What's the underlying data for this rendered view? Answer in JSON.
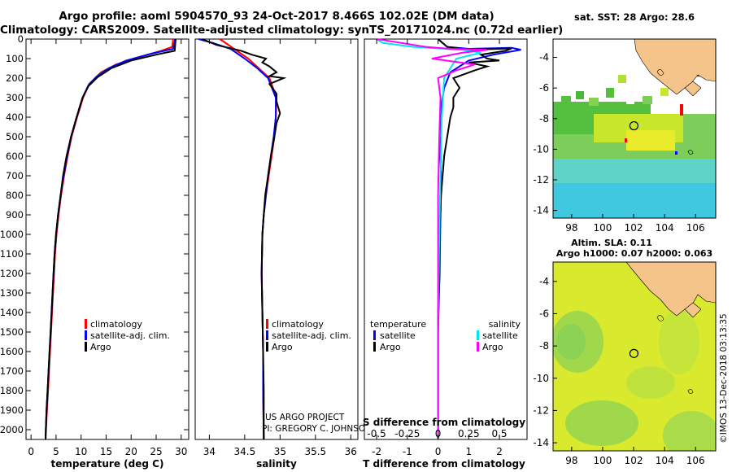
{
  "header": {
    "line1": "Argo profile: aoml 5904570_93 24-Oct-2017 8.466S 102.02E (DM data)",
    "line2": "Climatology: CARS2009. Satellite-adjusted climatology: synTS_20171024.nc (0.72d earlier)"
  },
  "colors": {
    "climatology": "#ff0000",
    "satellite": "#0000ff",
    "argo": "#000000",
    "salinity_satellite": "#00e5ee",
    "salinity_argo": "#ff00ff",
    "land": "#f5c48b"
  },
  "depth_axis": {
    "range": [
      0,
      2050
    ],
    "ticks": [
      0,
      100,
      200,
      300,
      400,
      500,
      600,
      700,
      800,
      900,
      1000,
      1100,
      1200,
      1300,
      1400,
      1500,
      1600,
      1700,
      1800,
      1900,
      2000
    ]
  },
  "chart_data": [
    {
      "type": "line",
      "name": "temperature",
      "xlabel": "temperature (deg C)",
      "xlim": [
        -1,
        31.5
      ],
      "xticks": [
        0,
        5,
        10,
        15,
        20,
        25,
        30
      ],
      "ylim": [
        0,
        2050
      ],
      "legend": {
        "position": "bottom-right",
        "items": [
          "climatology",
          "satellite-adj. clim.",
          "Argo"
        ]
      },
      "series": [
        {
          "name": "climatology",
          "color": "#ff0000",
          "points": [
            [
              28.4,
              0
            ],
            [
              28.2,
              40
            ],
            [
              26.0,
              60
            ],
            [
              22,
              90
            ],
            [
              17,
              130
            ],
            [
              14,
              170
            ],
            [
              11.6,
              230
            ],
            [
              10.4,
              300
            ],
            [
              9.2,
              400
            ],
            [
              8.1,
              500
            ],
            [
              7.3,
              600
            ],
            [
              6.6,
              700
            ],
            [
              6.0,
              800
            ],
            [
              5.5,
              900
            ],
            [
              5.1,
              1000
            ],
            [
              4.8,
              1100
            ],
            [
              4.6,
              1200
            ],
            [
              4.4,
              1300
            ],
            [
              4.2,
              1400
            ],
            [
              4.0,
              1500
            ],
            [
              3.8,
              1600
            ],
            [
              3.6,
              1700
            ],
            [
              3.4,
              1800
            ],
            [
              3.2,
              1900
            ],
            [
              3.0,
              2000
            ],
            [
              2.9,
              2050
            ]
          ]
        },
        {
          "name": "satellite-adj. clim.",
          "color": "#0000ff",
          "points": [
            [
              28.8,
              0
            ],
            [
              28.4,
              50
            ],
            [
              24,
              75
            ],
            [
              19,
              110
            ],
            [
              15.5,
              150
            ],
            [
              13,
              195
            ],
            [
              11.4,
              240
            ],
            [
              10.3,
              300
            ],
            [
              9.1,
              400
            ],
            [
              8.0,
              500
            ],
            [
              7.2,
              600
            ],
            [
              6.5,
              700
            ],
            [
              5.9,
              800
            ],
            [
              5.4,
              900
            ],
            [
              5.0,
              1000
            ],
            [
              4.7,
              1100
            ],
            [
              4.5,
              1200
            ],
            [
              4.3,
              1300
            ],
            [
              4.1,
              1400
            ],
            [
              3.9,
              1500
            ],
            [
              3.7,
              1600
            ],
            [
              3.5,
              1700
            ],
            [
              3.3,
              1800
            ],
            [
              3.1,
              1900
            ],
            [
              2.95,
              2000
            ],
            [
              2.9,
              2050
            ]
          ]
        },
        {
          "name": "Argo",
          "color": "#000000",
          "points": [
            [
              28.9,
              0
            ],
            [
              28.7,
              60
            ],
            [
              25,
              80
            ],
            [
              20,
              110
            ],
            [
              16,
              150
            ],
            [
              13.3,
              195
            ],
            [
              11.5,
              240
            ],
            [
              10.3,
              300
            ],
            [
              9.1,
              400
            ],
            [
              8.0,
              500
            ],
            [
              7.1,
              600
            ],
            [
              6.4,
              700
            ],
            [
              5.9,
              800
            ],
            [
              5.4,
              900
            ],
            [
              5.0,
              1000
            ],
            [
              4.7,
              1100
            ],
            [
              4.5,
              1200
            ],
            [
              4.3,
              1300
            ],
            [
              4.1,
              1400
            ],
            [
              3.9,
              1500
            ],
            [
              3.7,
              1600
            ],
            [
              3.5,
              1700
            ],
            [
              3.3,
              1800
            ],
            [
              3.1,
              1900
            ],
            [
              2.95,
              2000
            ],
            [
              2.9,
              2050
            ]
          ]
        }
      ]
    },
    {
      "type": "line",
      "name": "salinity",
      "xlabel": "salinity",
      "xlim": [
        33.8,
        36.1
      ],
      "xticks": [
        34,
        34.5,
        35,
        35.5,
        36
      ],
      "ylim": [
        0,
        2050
      ],
      "legend": {
        "position": "bottom-right",
        "items": [
          "climatology",
          "satellite-adj. clim.",
          "Argo"
        ]
      },
      "series": [
        {
          "name": "climatology",
          "color": "#ff0000",
          "points": [
            [
              34.15,
              0
            ],
            [
              34.35,
              50
            ],
            [
              34.55,
              100
            ],
            [
              34.7,
              150
            ],
            [
              34.85,
              200
            ],
            [
              34.95,
              300
            ],
            [
              34.94,
              400
            ],
            [
              34.92,
              500
            ],
            [
              34.88,
              600
            ],
            [
              34.84,
              700
            ],
            [
              34.8,
              800
            ],
            [
              34.77,
              900
            ],
            [
              34.75,
              1000
            ],
            [
              34.74,
              1200
            ],
            [
              34.75,
              1400
            ],
            [
              34.76,
              1600
            ],
            [
              34.76,
              1800
            ],
            [
              34.77,
              2050
            ]
          ]
        },
        {
          "name": "satellite-adj. clim.",
          "color": "#0000ff",
          "points": [
            [
              33.85,
              0
            ],
            [
              34.05,
              20
            ],
            [
              34.3,
              50
            ],
            [
              34.5,
              100
            ],
            [
              34.68,
              150
            ],
            [
              34.83,
              200
            ],
            [
              34.94,
              300
            ],
            [
              34.94,
              400
            ],
            [
              34.91,
              500
            ],
            [
              34.87,
              600
            ],
            [
              34.83,
              700
            ],
            [
              34.8,
              800
            ],
            [
              34.77,
              900
            ],
            [
              34.75,
              1000
            ],
            [
              34.74,
              1200
            ],
            [
              34.75,
              1400
            ],
            [
              34.76,
              1600
            ],
            [
              34.76,
              1800
            ],
            [
              34.77,
              2050
            ]
          ]
        },
        {
          "name": "Argo",
          "color": "#000000",
          "points": [
            [
              33.9,
              0
            ],
            [
              34.1,
              30
            ],
            [
              34.45,
              60
            ],
            [
              34.6,
              80
            ],
            [
              34.8,
              100
            ],
            [
              34.75,
              120
            ],
            [
              34.85,
              140
            ],
            [
              34.95,
              170
            ],
            [
              34.85,
              190
            ],
            [
              35.05,
              200
            ],
            [
              34.85,
              230
            ],
            [
              34.95,
              280
            ],
            [
              34.95,
              320
            ],
            [
              35.0,
              380
            ],
            [
              34.95,
              430
            ],
            [
              34.92,
              500
            ],
            [
              34.87,
              600
            ],
            [
              34.83,
              700
            ],
            [
              34.79,
              800
            ],
            [
              34.77,
              900
            ],
            [
              34.75,
              1000
            ],
            [
              34.74,
              1200
            ],
            [
              34.75,
              1400
            ],
            [
              34.76,
              1600
            ],
            [
              34.77,
              1800
            ],
            [
              34.77,
              2050
            ]
          ]
        }
      ]
    },
    {
      "type": "line",
      "name": "differences",
      "xlabel": "T difference from climatology",
      "xlabel_top": "S difference from climatology",
      "xlim": [
        -2.4,
        2.9
      ],
      "xticks": [
        -2,
        -1,
        0,
        1,
        2
      ],
      "xticks_top": [
        "-0.5",
        "-0.25",
        "0",
        "0.25",
        "0.5"
      ],
      "ylim": [
        0,
        2050
      ],
      "legend": {
        "position": "bottom",
        "temperature_title": "temperature",
        "salinity_title": "salinity",
        "temperature_items": [
          "satellite",
          "Argo"
        ],
        "salinity_items": [
          "satellite",
          "Argo"
        ]
      },
      "series": [
        {
          "name": "T satellite",
          "color": "#0000ff",
          "points": [
            [
              0,
              0
            ],
            [
              0.3,
              40
            ],
            [
              1.0,
              50
            ],
            [
              2.4,
              45
            ],
            [
              2.7,
              55
            ],
            [
              1.8,
              80
            ],
            [
              1.0,
              110
            ],
            [
              0.4,
              170
            ],
            [
              0.2,
              250
            ],
            [
              0.1,
              350
            ],
            [
              0.05,
              500
            ],
            [
              0.1,
              700
            ],
            [
              0.08,
              900
            ],
            [
              0.05,
              1200
            ],
            [
              0,
              1500
            ],
            [
              0,
              2050
            ]
          ]
        },
        {
          "name": "T Argo",
          "color": "#000000",
          "points": [
            [
              0,
              0
            ],
            [
              0.3,
              40
            ],
            [
              1.0,
              55
            ],
            [
              2.4,
              48
            ],
            [
              2.2,
              60
            ],
            [
              1.4,
              80
            ],
            [
              1.6,
              100
            ],
            [
              2.0,
              110
            ],
            [
              1.0,
              120
            ],
            [
              1.6,
              140
            ],
            [
              1.2,
              160
            ],
            [
              0.5,
              200
            ],
            [
              0.7,
              250
            ],
            [
              0.5,
              300
            ],
            [
              0.5,
              350
            ],
            [
              0.4,
              400
            ],
            [
              0.3,
              500
            ],
            [
              0.2,
              600
            ],
            [
              0.15,
              700
            ],
            [
              0.1,
              800
            ],
            [
              0.05,
              1000
            ],
            [
              0.05,
              1200
            ],
            [
              0,
              1400
            ],
            [
              0,
              2050
            ]
          ]
        },
        {
          "name": "S satellite",
          "color": "#00e5ee",
          "points": [
            [
              -0.5,
              0
            ],
            [
              -0.45,
              20
            ],
            [
              -0.2,
              40
            ],
            [
              0.2,
              55
            ],
            [
              0.35,
              70
            ],
            [
              0.15,
              100
            ],
            [
              0.05,
              200
            ],
            [
              0.03,
              400
            ],
            [
              0.02,
              700
            ],
            [
              0.01,
              1000
            ],
            [
              0.0,
              1500
            ],
            [
              0,
              2050
            ]
          ]
        },
        {
          "name": "S Argo",
          "color": "#ff00ff",
          "points": [
            [
              -0.5,
              0
            ],
            [
              -0.3,
              20
            ],
            [
              -0.1,
              40
            ],
            [
              0.1,
              50
            ],
            [
              0.4,
              55
            ],
            [
              0.2,
              70
            ],
            [
              -0.05,
              100
            ],
            [
              0.3,
              130
            ],
            [
              0.15,
              160
            ],
            [
              0.0,
              200
            ],
            [
              0.02,
              300
            ],
            [
              0.01,
              500
            ],
            [
              0.0,
              800
            ],
            [
              0.0,
              1200
            ],
            [
              0,
              2050
            ]
          ]
        }
      ]
    }
  ],
  "credits": {
    "line1": "US ARGO PROJECT",
    "line2": "PI: GREGORY C. JOHNSON"
  },
  "maps": {
    "top_title": "sat. SST: 28 Argo: 28.6",
    "bottom_title1": "Altim. SLA: 0.11",
    "bottom_title2": "Argo h1000: 0.07 h2000: 0.063",
    "lon_ticks": [
      "98",
      "100",
      "102",
      "104",
      "106"
    ],
    "lat_ticks": [
      "-4",
      "-6",
      "-8",
      "-10",
      "-12",
      "-14"
    ],
    "lon_range": [
      96.8,
      107.3
    ],
    "lat_range": [
      -14.5,
      -2.8
    ],
    "float_position": {
      "lon": 102.02,
      "lat": -8.466
    },
    "ticks_lon_values": [
      98,
      100,
      102,
      104,
      106
    ],
    "ticks_lat_values": [
      -4,
      -6,
      -8,
      -10,
      -12,
      -14
    ]
  },
  "footer_stamp": "©IMOS 13-Dec-2018 03:13:35"
}
